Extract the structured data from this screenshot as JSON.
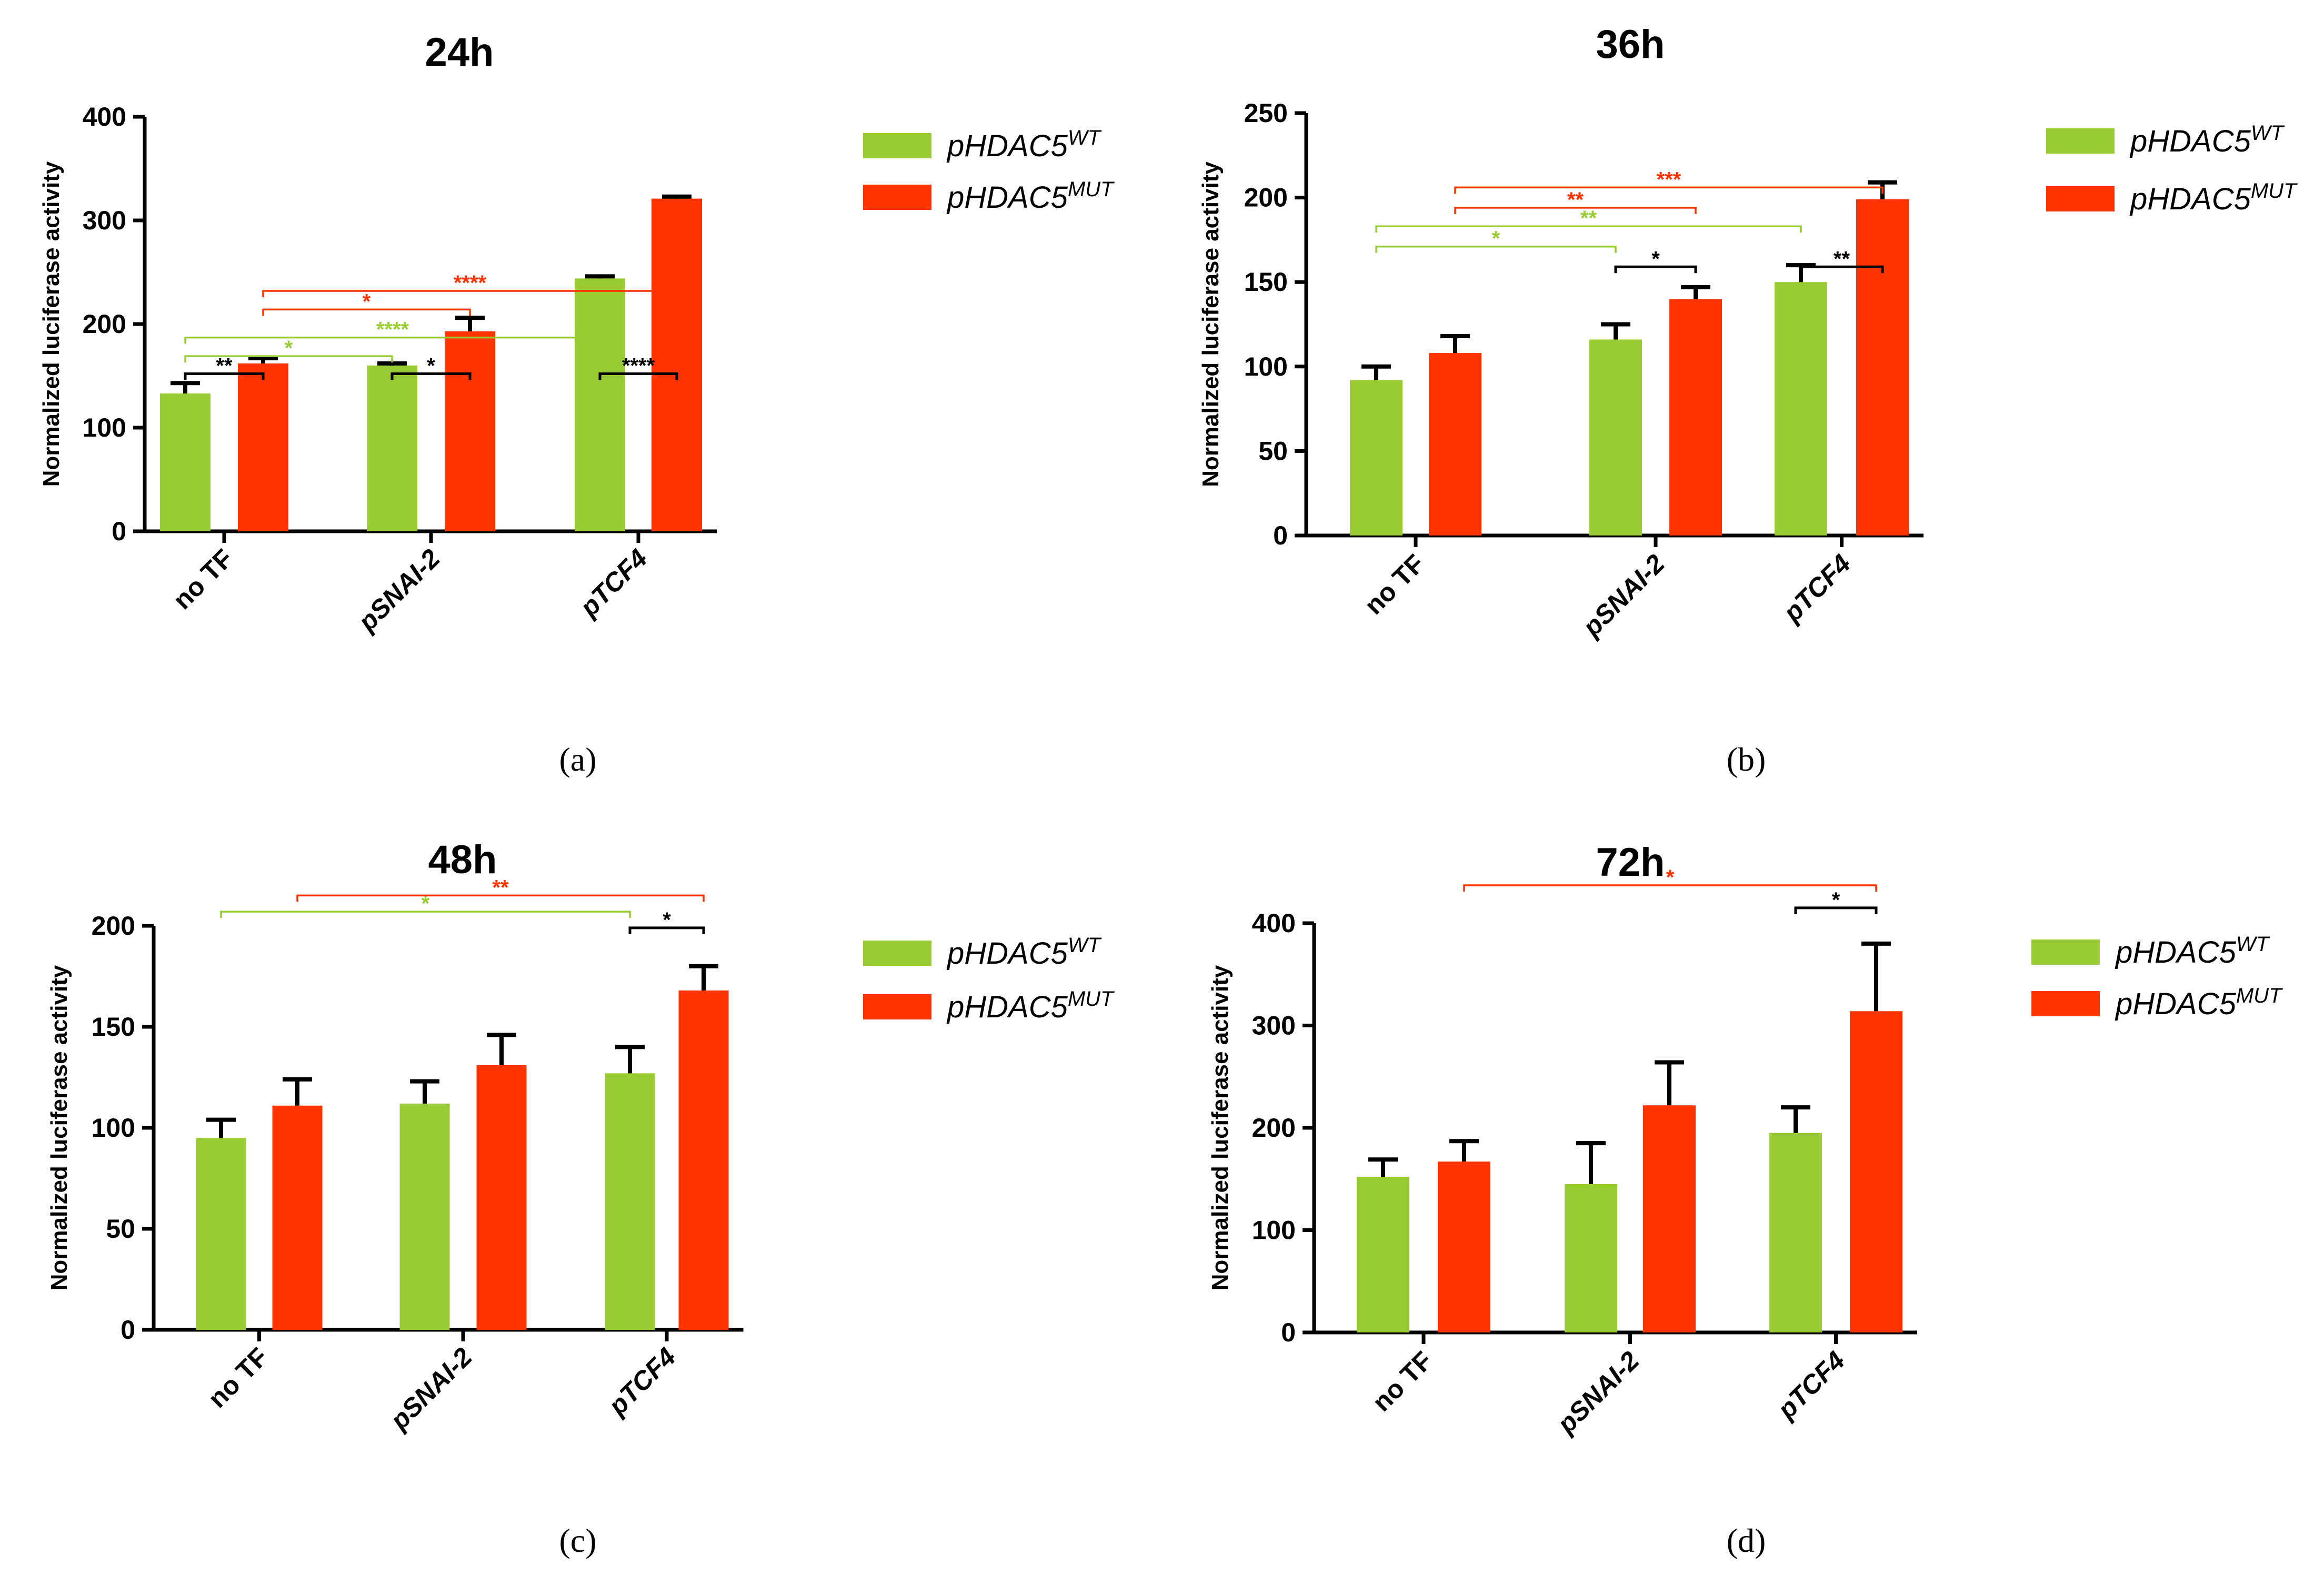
{
  "figure": {
    "legend_labels": {
      "wt_base": "pHDAC5",
      "wt_sup": "WT",
      "mut_base": "pHDAC5",
      "mut_sup": "MUT"
    },
    "colors": {
      "wt": "#99CC33",
      "mut": "#FF3300",
      "axis": "#000000",
      "sig_black": "#000000"
    }
  },
  "chart_data": [
    {
      "type": "bar",
      "title": "24h",
      "panel_label": "(a)",
      "ylabel": "Normalized luciferase activity",
      "xlabel": "",
      "categories": [
        "no TF",
        "pSNAI-2",
        "pTCF4"
      ],
      "ylim": [
        0,
        400
      ],
      "yticks": [
        0,
        100,
        200,
        300,
        400
      ],
      "series": [
        {
          "key": "wt",
          "values": [
            133,
            160,
            244
          ],
          "errors": [
            10,
            2,
            2
          ]
        },
        {
          "key": "mut",
          "values": [
            162,
            193,
            321
          ],
          "errors": [
            5,
            13,
            2
          ]
        }
      ],
      "significance": [
        {
          "from": [
            0,
            0
          ],
          "to": [
            0,
            1
          ],
          "value": 152,
          "label": "**",
          "color": "black"
        },
        {
          "from": [
            1,
            0
          ],
          "to": [
            1,
            1
          ],
          "value": 152,
          "label": "*",
          "color": "black"
        },
        {
          "from": [
            2,
            0
          ],
          "to": [
            2,
            1
          ],
          "value": 152,
          "label": "****",
          "color": "black"
        },
        {
          "from": [
            0,
            0
          ],
          "to": [
            1,
            0
          ],
          "value": 169,
          "label": "*",
          "color": "wt"
        },
        {
          "from": [
            0,
            0
          ],
          "to": [
            2,
            0
          ],
          "value": 187,
          "label": "****",
          "color": "wt"
        },
        {
          "from": [
            0,
            1
          ],
          "to": [
            1,
            1
          ],
          "value": 214,
          "label": "*",
          "color": "mut"
        },
        {
          "from": [
            0,
            1
          ],
          "to": [
            2,
            1
          ],
          "value": 232,
          "label": "****",
          "color": "mut"
        }
      ]
    },
    {
      "type": "bar",
      "title": "36h",
      "panel_label": "(b)",
      "ylabel": "Normalized luciferase activity",
      "xlabel": "",
      "categories": [
        "no TF",
        "pSNAI-2",
        "pTCF4"
      ],
      "ylim": [
        0,
        250
      ],
      "yticks": [
        0,
        50,
        100,
        150,
        200,
        250
      ],
      "series": [
        {
          "key": "wt",
          "values": [
            92,
            116,
            150
          ],
          "errors": [
            8,
            9,
            10
          ]
        },
        {
          "key": "mut",
          "values": [
            108,
            140,
            199
          ],
          "errors": [
            10,
            7,
            10
          ]
        }
      ],
      "significance": [
        {
          "from": [
            1,
            0
          ],
          "to": [
            1,
            1
          ],
          "value": 159,
          "label": "*",
          "color": "black"
        },
        {
          "from": [
            2,
            0
          ],
          "to": [
            2,
            1
          ],
          "value": 159,
          "label": "**",
          "color": "black"
        },
        {
          "from": [
            0,
            0
          ],
          "to": [
            1,
            0
          ],
          "value": 171,
          "label": "*",
          "color": "wt"
        },
        {
          "from": [
            0,
            0
          ],
          "to": [
            2,
            0
          ],
          "value": 183,
          "label": "**",
          "color": "wt"
        },
        {
          "from": [
            0,
            1
          ],
          "to": [
            1,
            1
          ],
          "value": 194,
          "label": "**",
          "color": "mut"
        },
        {
          "from": [
            0,
            1
          ],
          "to": [
            2,
            1
          ],
          "value": 206,
          "label": "***",
          "color": "mut"
        }
      ]
    },
    {
      "type": "bar",
      "title": "48h",
      "panel_label": "(c)",
      "ylabel": "Normalized luciferase activity",
      "xlabel": "",
      "categories": [
        "no TF",
        "pSNAI-2",
        "pTCF4"
      ],
      "ylim": [
        0,
        200
      ],
      "yticks": [
        0,
        50,
        100,
        150,
        200
      ],
      "series": [
        {
          "key": "wt",
          "values": [
            95,
            112,
            127
          ],
          "errors": [
            9,
            11,
            13
          ]
        },
        {
          "key": "mut",
          "values": [
            111,
            131,
            168
          ],
          "errors": [
            13,
            15,
            12
          ]
        }
      ],
      "significance": [
        {
          "from": [
            2,
            0
          ],
          "to": [
            2,
            1
          ],
          "value": 199,
          "label": "*",
          "color": "black"
        },
        {
          "from": [
            0,
            0
          ],
          "to": [
            2,
            0
          ],
          "value": 207,
          "label": "*",
          "color": "wt"
        },
        {
          "from": [
            0,
            1
          ],
          "to": [
            2,
            1
          ],
          "value": 215,
          "label": "**",
          "color": "mut"
        }
      ]
    },
    {
      "type": "bar",
      "title": "72h",
      "panel_label": "(d)",
      "ylabel": "Normalized luciferase activity",
      "xlabel": "",
      "categories": [
        "no TF",
        "pSNAI-2",
        "pTCF4"
      ],
      "ylim": [
        0,
        400
      ],
      "yticks": [
        0,
        100,
        200,
        300,
        400
      ],
      "series": [
        {
          "key": "wt",
          "values": [
            152,
            145,
            195
          ],
          "errors": [
            17,
            40,
            25
          ]
        },
        {
          "key": "mut",
          "values": [
            167,
            222,
            314
          ],
          "errors": [
            20,
            42,
            66
          ]
        }
      ],
      "significance": [
        {
          "from": [
            2,
            0
          ],
          "to": [
            2,
            1
          ],
          "value": 415,
          "label": "*",
          "color": "black"
        },
        {
          "from": [
            0,
            1
          ],
          "to": [
            2,
            1
          ],
          "value": 437,
          "label": "*",
          "color": "mut"
        }
      ]
    }
  ]
}
